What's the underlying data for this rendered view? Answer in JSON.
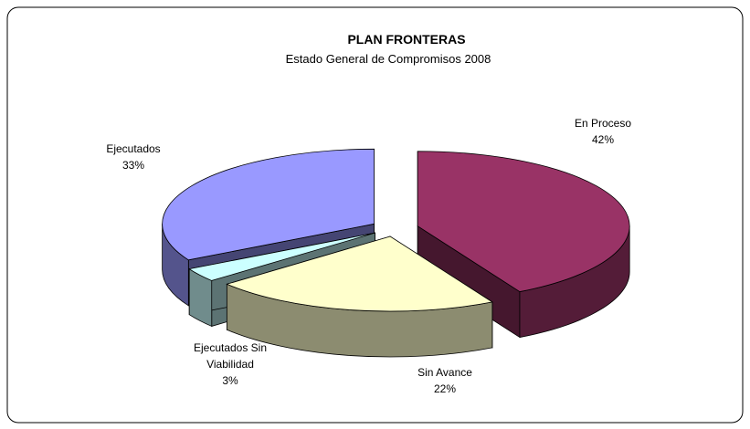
{
  "chart_data": {
    "type": "pie",
    "title": "PLAN FRONTERAS",
    "subtitle": "Estado General de Compromisos 2008",
    "categories": [
      "En Proceso",
      "Sin Avance",
      "Ejecutados Sin Viabilidad",
      "Ejecutados"
    ],
    "values": [
      42,
      22,
      3,
      33
    ],
    "value_labels": [
      "42%",
      "22%",
      "3%",
      "33%"
    ],
    "colors": [
      "#993366",
      "#ffffcc",
      "#ccffff",
      "#9999ff"
    ]
  }
}
